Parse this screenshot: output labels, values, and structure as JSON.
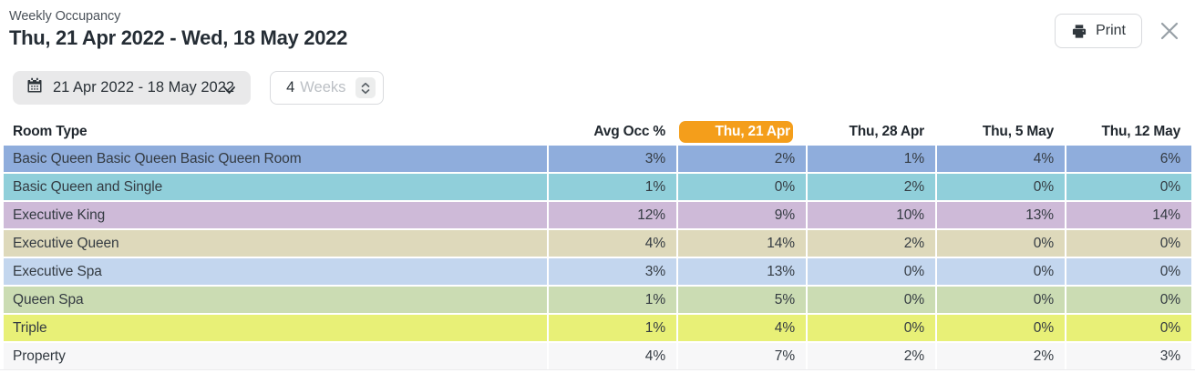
{
  "header": {
    "subtitle": "Weekly Occupancy",
    "title": "Thu, 21 Apr 2022 - Wed, 18 May 2022",
    "print_label": "Print"
  },
  "controls": {
    "date_range": "21 Apr 2022 - 18 May 2022",
    "weeks_value": "4",
    "weeks_unit": "Weeks"
  },
  "table": {
    "room_type_header": "Room Type",
    "avg_header": "Avg Occ %",
    "date_columns": [
      {
        "label": "Thu, 21 Apr",
        "highlighted": true
      },
      {
        "label": "Thu, 28 Apr",
        "highlighted": false
      },
      {
        "label": "Thu, 5 May",
        "highlighted": false
      },
      {
        "label": "Thu, 12 May",
        "highlighted": false
      }
    ],
    "rows": [
      {
        "room": "Basic Queen Basic Queen Basic Queen Room",
        "color": "#8FADDC",
        "avg": "3%",
        "values": [
          "2%",
          "1%",
          "4%",
          "6%"
        ]
      },
      {
        "room": "Basic Queen and Single",
        "color": "#90CFDA",
        "avg": "1%",
        "values": [
          "0%",
          "2%",
          "0%",
          "0%"
        ]
      },
      {
        "room": "Executive King",
        "color": "#CEBAD8",
        "avg": "12%",
        "values": [
          "9%",
          "10%",
          "13%",
          "14%"
        ]
      },
      {
        "room": "Executive Queen",
        "color": "#DED9BB",
        "avg": "4%",
        "values": [
          "14%",
          "2%",
          "0%",
          "0%"
        ]
      },
      {
        "room": "Executive Spa",
        "color": "#C3D6EE",
        "avg": "3%",
        "values": [
          "13%",
          "0%",
          "0%",
          "0%"
        ]
      },
      {
        "room": "Queen Spa",
        "color": "#CBDCB3",
        "avg": "1%",
        "values": [
          "5%",
          "0%",
          "0%",
          "0%"
        ]
      },
      {
        "room": "Triple",
        "color": "#E8F077",
        "avg": "1%",
        "values": [
          "4%",
          "0%",
          "0%",
          "0%"
        ]
      },
      {
        "room": "Property",
        "color": "#F7F7F8",
        "avg": "4%",
        "values": [
          "7%",
          "2%",
          "2%",
          "3%"
        ]
      }
    ]
  },
  "colors": {
    "highlight": "#F49E1B"
  }
}
